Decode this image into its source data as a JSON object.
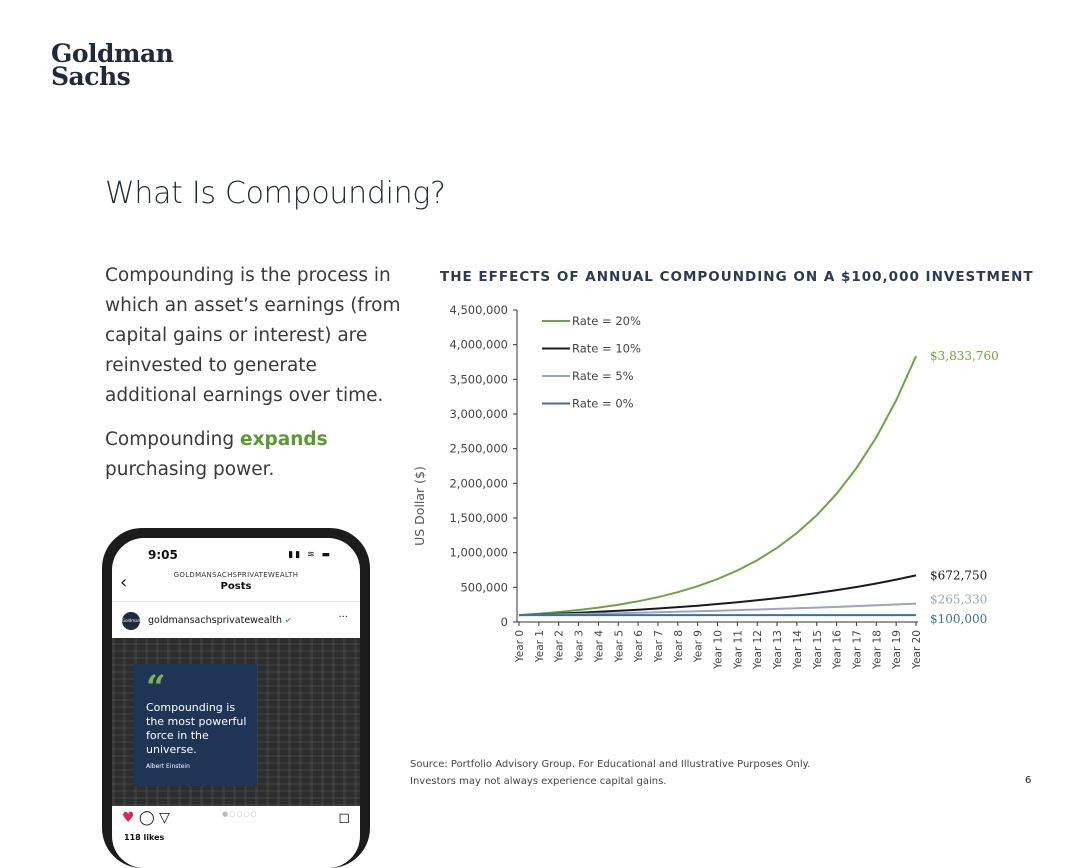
{
  "logo": {
    "line1": "Goldman",
    "line2": "Sachs"
  },
  "title": "What Is Compounding?",
  "body": {
    "p1": "Compounding is the process in which an asset’s earnings (from capital gains or interest) are reinvested to generate additional earnings over time.",
    "p2_pre": "Compounding ",
    "p2_accent": "expands",
    "p2_post": " purchasing power."
  },
  "colors": {
    "accent_green": "#5a9a32",
    "navy": "#1f2a3a"
  },
  "phone": {
    "time": "9:05",
    "status_icons": "signal wifi battery",
    "account_caption": "GOLDMANSACHSPRIVATEWEALTH",
    "screen_title": "Posts",
    "avatar_text": "Goldman Sachs",
    "handle": "goldmansachsprivatewealth",
    "verified_mark": "✔",
    "quote_mark": "“",
    "quote": "Compounding is the most powerful force in the universe.",
    "author": "Albert Einstein",
    "likes": "118 likes",
    "icons": {
      "heart": "heart-icon",
      "comment": "comment-icon",
      "share": "share-icon",
      "bookmark": "bookmark-icon"
    }
  },
  "chart_data": {
    "type": "line",
    "title": "THE EFFECTS OF ANNUAL COMPOUNDING ON A $100,000 INVESTMENT",
    "ylabel": "US Dollar ($)",
    "xlabel": "",
    "ylim": [
      0,
      4500000
    ],
    "yticks": [
      "0",
      "500,000",
      "1,000,000",
      "1,500,000",
      "2,000,000",
      "2,500,000",
      "3,000,000",
      "3,500,000",
      "4,000,000",
      "4,500,000"
    ],
    "categories": [
      "Year 0",
      "Year 1",
      "Year 2",
      "Year 3",
      "Year 4",
      "Year 5",
      "Year 6",
      "Year 7",
      "Year 8",
      "Year 9",
      "Year 10",
      "Year 11",
      "Year 12",
      "Year 13",
      "Year 14",
      "Year 15",
      "Year 16",
      "Year 17",
      "Year 18",
      "Year 19",
      "Year 20"
    ],
    "legend_position": "top-left",
    "series": [
      {
        "name": "Rate = 20%",
        "color": "#6aa63f",
        "end_label": "$3,833,760",
        "values": [
          100000,
          120000,
          144000,
          172800,
          207360,
          248832,
          298598,
          358318,
          429982,
          515978,
          619174,
          743008,
          891610,
          1069932,
          1283918,
          1540702,
          1848843,
          2218611,
          2662333,
          3194800,
          3833760
        ]
      },
      {
        "name": "Rate = 10%",
        "color": "#1a1a22",
        "end_label": "$672,750",
        "values": [
          100000,
          110000,
          121000,
          133100,
          146410,
          161051,
          177156,
          194872,
          214359,
          235795,
          259374,
          285312,
          313843,
          345227,
          379750,
          417725,
          459497,
          505447,
          555992,
          611591,
          672750
        ]
      },
      {
        "name": "Rate = 5%",
        "color": "#9aa6bd",
        "end_label": "$265,330",
        "values": [
          100000,
          105000,
          110250,
          115763,
          121551,
          127628,
          134010,
          140710,
          147746,
          155133,
          162889,
          171034,
          179586,
          188565,
          197993,
          207893,
          218287,
          229202,
          240662,
          252695,
          265330
        ]
      },
      {
        "name": "Rate = 0%",
        "color": "#3f6e9e",
        "end_label": "$100,000",
        "values": [
          100000,
          100000,
          100000,
          100000,
          100000,
          100000,
          100000,
          100000,
          100000,
          100000,
          100000,
          100000,
          100000,
          100000,
          100000,
          100000,
          100000,
          100000,
          100000,
          100000,
          100000
        ]
      }
    ]
  },
  "source": {
    "line1": "Source: Portfolio Advisory Group. For Educational and Illustrative Purposes Only.",
    "line2": "Investors may not always experience capital gains."
  },
  "page_number": "6"
}
